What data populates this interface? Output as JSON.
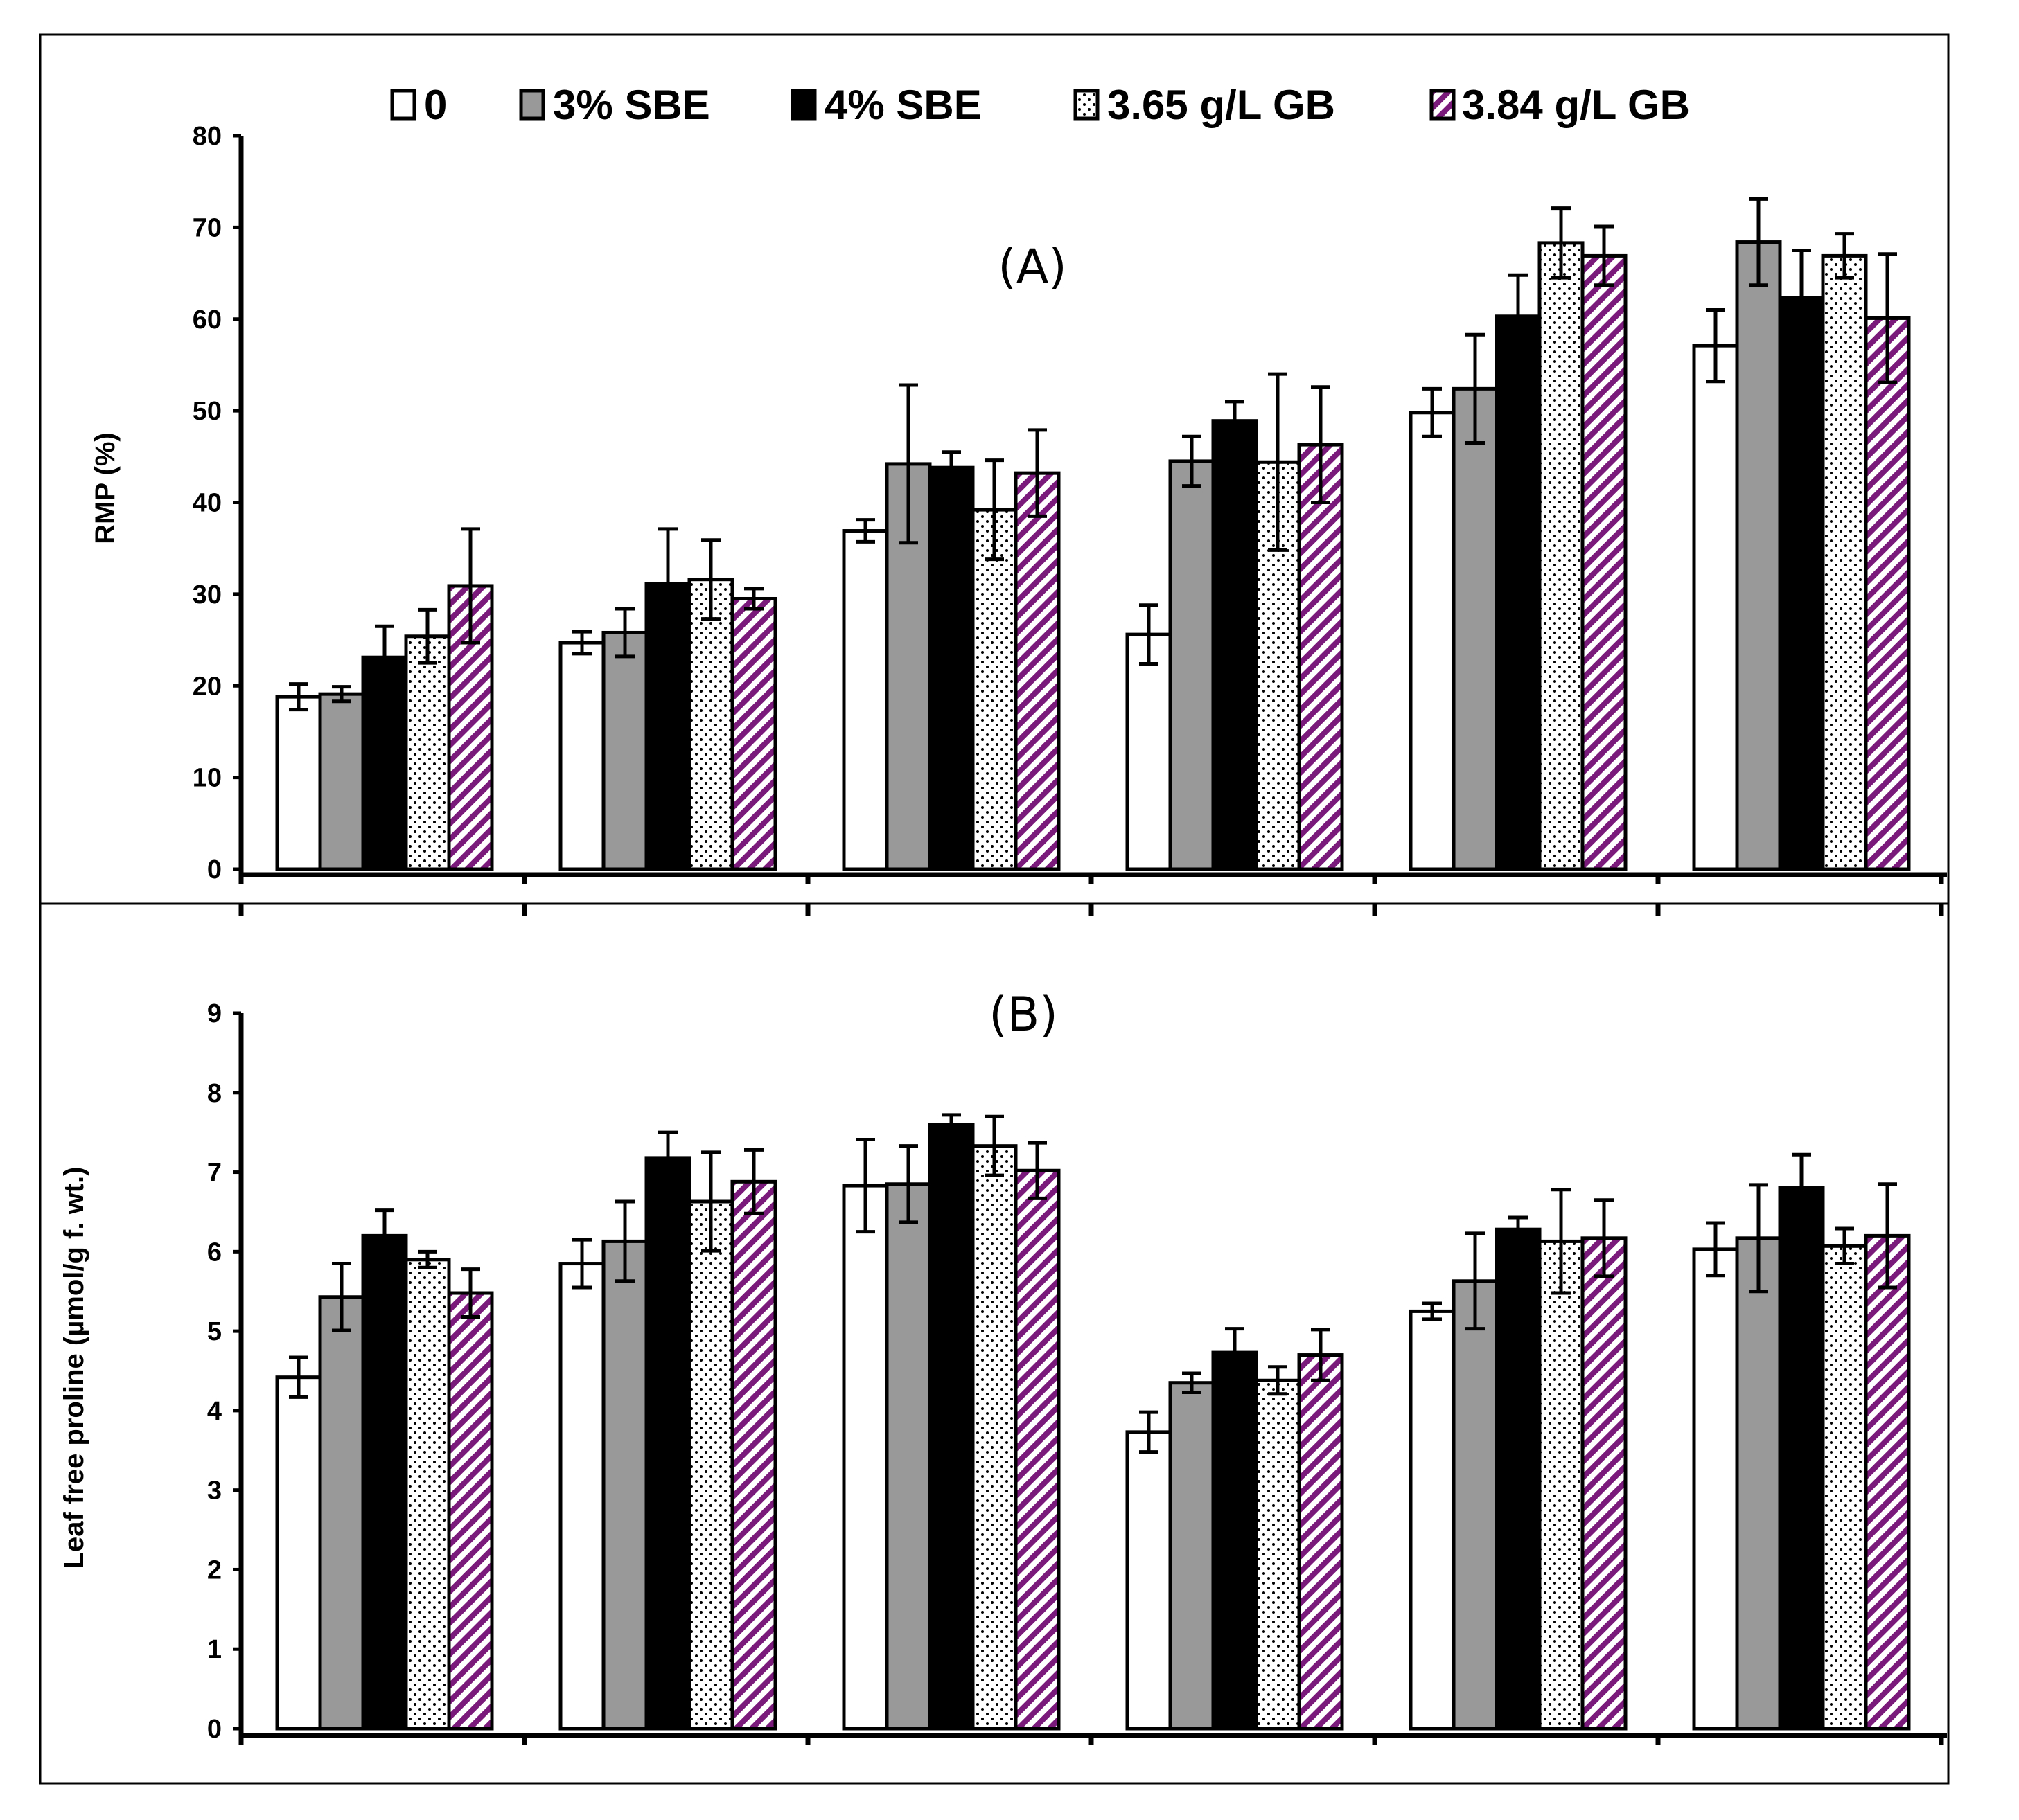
{
  "legend": [
    "0",
    "3% SBE",
    "4% SBE",
    "3.65 g/L GB",
    "3.84 g/L GB"
  ],
  "colors": {
    "purple": "#7a1a7a",
    "gray": "#999999",
    "black": "#000000",
    "white": "#ffffff"
  },
  "chart_data": [
    {
      "type": "bar",
      "panel_label": "(A)",
      "title": "",
      "xlabel": "",
      "ylabel": "RMP (%)",
      "ylim": [
        0,
        80
      ],
      "yticks": [
        0,
        10,
        20,
        30,
        40,
        50,
        60,
        70,
        80
      ],
      "group_count": 6,
      "series": [
        {
          "name": "0",
          "values": [
            18.8,
            24.7,
            36.9,
            25.6,
            49.8,
            57.1
          ],
          "errors": [
            1.4,
            1.2,
            1.2,
            3.2,
            2.6,
            3.9
          ]
        },
        {
          "name": "3% SBE",
          "values": [
            19.1,
            25.8,
            44.2,
            44.5,
            52.4,
            68.4
          ],
          "errors": [
            0.8,
            2.6,
            8.6,
            2.7,
            5.9,
            4.7
          ]
        },
        {
          "name": "4% SBE",
          "values": [
            23.1,
            31.1,
            43.8,
            48.9,
            60.3,
            62.3
          ],
          "errors": [
            3.4,
            6.0,
            1.7,
            2.1,
            4.5,
            5.2
          ]
        },
        {
          "name": "3.65 g/L GB",
          "values": [
            25.4,
            31.6,
            39.2,
            44.4,
            68.3,
            66.9
          ],
          "errors": [
            2.9,
            4.3,
            5.4,
            9.6,
            3.8,
            2.4
          ]
        },
        {
          "name": "3.84 g/L GB",
          "values": [
            30.9,
            29.5,
            43.2,
            46.3,
            66.9,
            60.1
          ],
          "errors": [
            6.2,
            1.1,
            4.7,
            6.3,
            3.2,
            7.0
          ]
        }
      ]
    },
    {
      "type": "bar",
      "panel_label": "(B)",
      "title": "",
      "xlabel": "",
      "ylabel": "Leaf free proline (µmol/g f. wt.)",
      "ylim": [
        0,
        9
      ],
      "yticks": [
        0,
        1,
        2,
        3,
        4,
        5,
        6,
        7,
        8,
        9
      ],
      "group_count": 6,
      "series": [
        {
          "name": "0",
          "values": [
            4.42,
            5.85,
            6.83,
            3.73,
            5.25,
            6.03
          ],
          "errors": [
            0.25,
            0.3,
            0.58,
            0.25,
            0.1,
            0.33
          ]
        },
        {
          "name": "3% SBE",
          "values": [
            5.43,
            6.13,
            6.85,
            4.35,
            5.63,
            6.17
          ],
          "errors": [
            0.42,
            0.5,
            0.48,
            0.12,
            0.6,
            0.67
          ]
        },
        {
          "name": "4% SBE",
          "values": [
            6.2,
            7.18,
            7.6,
            4.73,
            6.28,
            6.8
          ],
          "errors": [
            0.32,
            0.32,
            0.12,
            0.3,
            0.15,
            0.42
          ]
        },
        {
          "name": "3.65 g/L GB",
          "values": [
            5.9,
            6.63,
            7.33,
            4.38,
            6.13,
            6.07
          ],
          "errors": [
            0.1,
            0.62,
            0.37,
            0.17,
            0.65,
            0.22
          ]
        },
        {
          "name": "3.84 g/L GB",
          "values": [
            5.48,
            6.88,
            7.02,
            4.7,
            6.17,
            6.2
          ],
          "errors": [
            0.3,
            0.4,
            0.35,
            0.32,
            0.48,
            0.65
          ]
        }
      ]
    }
  ]
}
